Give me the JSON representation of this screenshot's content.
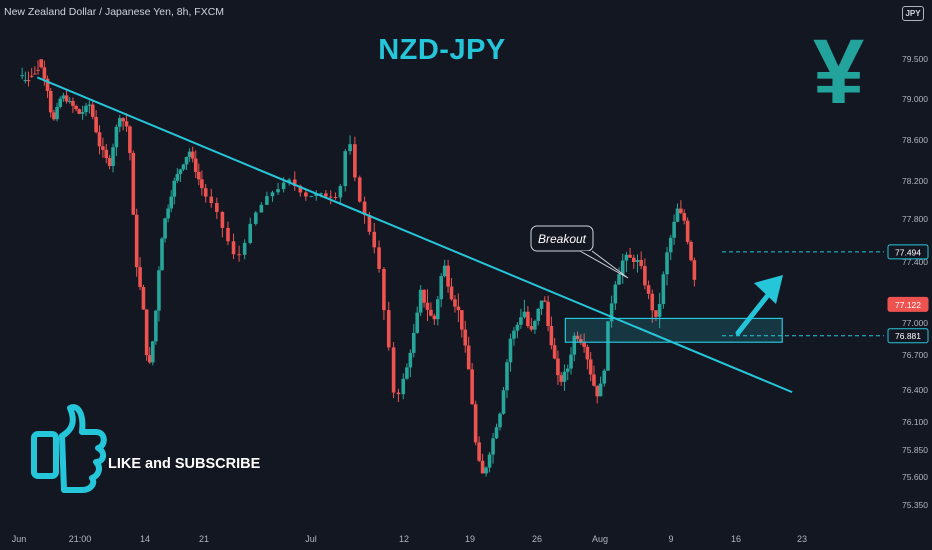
{
  "header": {
    "symbol": "New Zealand Dollar / Japanese Yen, 8h, FXCM",
    "title": "NZD-JPY",
    "currency_badge": "JPY",
    "currency_glyph": "¥"
  },
  "promo": {
    "text": "LIKE and SUBSCRIBE",
    "icon": "thumbs-up-icon"
  },
  "colors": {
    "background": "#131722",
    "up": "#26a69a",
    "down": "#ef5350",
    "accent": "#26c6da",
    "yen": "#22a39b"
  },
  "chart_data": {
    "type": "candlestick",
    "title": "NZD-JPY",
    "x_ticks": [
      "Jun",
      "21:00",
      "14",
      "21",
      "Jul",
      "12",
      "19",
      "26",
      "Aug",
      "9",
      "16",
      "23"
    ],
    "y_ticks": [
      79.5,
      79.0,
      78.6,
      78.2,
      77.8,
      77.4,
      77.0,
      76.7,
      76.4,
      76.1,
      75.85,
      75.6,
      75.35
    ],
    "y_tick_labels": [
      "79.500",
      "79.000",
      "78.600",
      "78.200",
      "77.800",
      "77.400",
      "77.000",
      "76.700",
      "76.400",
      "76.100",
      "75.850",
      "75.600",
      "75.350"
    ],
    "ylim": [
      75.25,
      80.0
    ],
    "price_markers": [
      {
        "label": "77.494",
        "value": 77.494,
        "color": "#26c6da",
        "dashed_line": true
      },
      {
        "label": "77.122",
        "value": 77.122,
        "color": "#ef5350",
        "dashed_line": false
      },
      {
        "label": "76.881",
        "value": 76.881,
        "color": "#26c6da",
        "dashed_line": true
      }
    ],
    "trendline": {
      "from": {
        "x_index": 0.3,
        "price": 79.27
      },
      "to": {
        "x_index": 10.85,
        "price": 76.38
      }
    },
    "support_zone": {
      "price_top": 77.03,
      "price_bottom": 76.82,
      "x_index_start": 7.45,
      "x_index_end": 10.7
    },
    "annotation": "Breakout",
    "path": [
      [
        0.0,
        79.62
      ],
      [
        0.1,
        79.78
      ],
      [
        0.25,
        79.65
      ],
      [
        0.45,
        79.2
      ],
      [
        0.55,
        78.75
      ],
      [
        0.7,
        79.05
      ],
      [
        0.85,
        78.95
      ],
      [
        1.0,
        78.85
      ],
      [
        1.15,
        78.95
      ],
      [
        1.3,
        78.55
      ],
      [
        1.45,
        78.35
      ],
      [
        1.6,
        78.85
      ],
      [
        1.75,
        78.7
      ],
      [
        1.85,
        77.45
      ],
      [
        2.0,
        77.0
      ],
      [
        2.05,
        76.5
      ],
      [
        2.15,
        76.9
      ],
      [
        2.3,
        77.7
      ],
      [
        2.5,
        78.2
      ],
      [
        2.75,
        78.5
      ],
      [
        2.95,
        78.15
      ],
      [
        3.1,
        77.9
      ],
      [
        3.3,
        77.4
      ],
      [
        3.5,
        77.9
      ],
      [
        3.65,
        78.1
      ],
      [
        3.8,
        78.2
      ],
      [
        3.95,
        78.05
      ],
      [
        4.3,
        78.05
      ],
      [
        4.4,
        78.7
      ],
      [
        4.45,
        78.3
      ],
      [
        4.55,
        77.9
      ],
      [
        4.7,
        77.5
      ],
      [
        4.8,
        77.0
      ],
      [
        4.9,
        76.3
      ],
      [
        5.05,
        76.6
      ],
      [
        5.25,
        77.2
      ],
      [
        5.45,
        77.0
      ],
      [
        5.6,
        77.4
      ],
      [
        5.7,
        77.2
      ],
      [
        5.85,
        77.05
      ],
      [
        6.0,
        76.5
      ],
      [
        6.1,
        75.8
      ],
      [
        6.2,
        75.6
      ],
      [
        6.3,
        75.85
      ],
      [
        6.45,
        76.2
      ],
      [
        6.6,
        76.85
      ],
      [
        6.8,
        77.1
      ],
      [
        6.9,
        76.9
      ],
      [
        7.1,
        77.2
      ],
      [
        7.25,
        76.75
      ],
      [
        7.35,
        76.45
      ],
      [
        7.5,
        76.6
      ],
      [
        7.6,
        76.9
      ],
      [
        7.75,
        76.8
      ],
      [
        7.85,
        76.55
      ],
      [
        7.95,
        76.35
      ],
      [
        8.05,
        76.5
      ],
      [
        8.1,
        76.95
      ],
      [
        8.2,
        77.25
      ],
      [
        8.35,
        77.45
      ],
      [
        8.55,
        77.4
      ],
      [
        8.7,
        77.15
      ],
      [
        8.8,
        77.0
      ],
      [
        8.95,
        77.5
      ],
      [
        9.1,
        77.9
      ],
      [
        9.2,
        77.8
      ],
      [
        9.3,
        77.45
      ],
      [
        9.4,
        77.2
      ]
    ],
    "grid": false,
    "legend": "none"
  }
}
